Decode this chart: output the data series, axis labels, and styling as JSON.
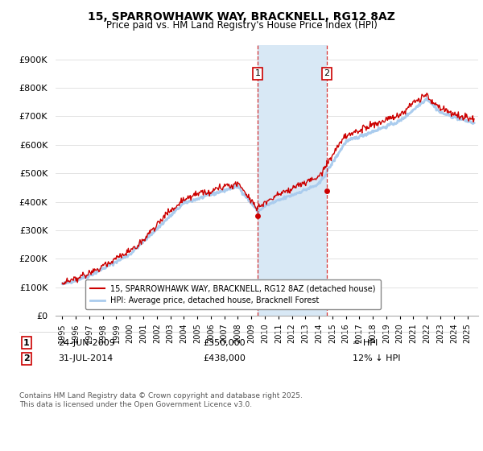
{
  "title": "15, SPARROWHAWK WAY, BRACKNELL, RG12 8AZ",
  "subtitle": "Price paid vs. HM Land Registry's House Price Index (HPI)",
  "legend_line1": "15, SPARROWHAWK WAY, BRACKNELL, RG12 8AZ (detached house)",
  "legend_line2": "HPI: Average price, detached house, Bracknell Forest",
  "annotation1_date": "24-JUN-2009",
  "annotation1_price": "£350,000",
  "annotation1_hpi": "≈ HPI",
  "annotation2_date": "31-JUL-2014",
  "annotation2_price": "£438,000",
  "annotation2_hpi": "12% ↓ HPI",
  "footnote": "Contains HM Land Registry data © Crown copyright and database right 2025.\nThis data is licensed under the Open Government Licence v3.0.",
  "hpi_color": "#aaccee",
  "price_color": "#cc0000",
  "marker_color": "#cc0000",
  "shaded_region_color": "#d8e8f5",
  "annotation_box_color": "#cc0000",
  "ylim": [
    0,
    950000
  ],
  "yticks": [
    0,
    100000,
    200000,
    300000,
    400000,
    500000,
    600000,
    700000,
    800000,
    900000
  ],
  "ytick_labels": [
    "£0",
    "£100K",
    "£200K",
    "£300K",
    "£400K",
    "£500K",
    "£600K",
    "£700K",
    "£800K",
    "£900K"
  ]
}
